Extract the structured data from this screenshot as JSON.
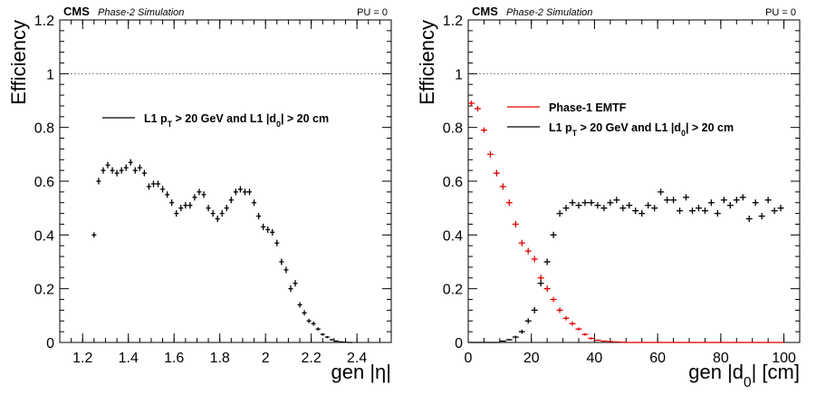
{
  "chart_data": [
    {
      "type": "scatter",
      "experiment_label": "CMS",
      "status_label": "Phase-2 Simulation",
      "condition_label": "PU = 0",
      "xlabel": "gen |η|",
      "ylabel": "Efficiency",
      "xlim": [
        1.1,
        2.55
      ],
      "ylim": [
        0,
        1.2
      ],
      "xticks": [
        1.2,
        1.4,
        1.6,
        1.8,
        2,
        2.2,
        2.4
      ],
      "xtick_labels": [
        "1.2",
        "1.4",
        "1.6",
        "1.8",
        "2",
        "2.2",
        "2.4"
      ],
      "yticks": [
        0,
        0.2,
        0.4,
        0.6,
        0.8,
        1,
        1.2
      ],
      "ytick_labels": [
        "0",
        "0.2",
        "0.4",
        "0.6",
        "0.8",
        "1",
        "1.2"
      ],
      "reference_line": 1,
      "grid": false,
      "legend_position": "upper-right",
      "series": [
        {
          "name": "L1 p_T > 20 GeV and L1 |d_0| > 20 cm",
          "color": "#000000",
          "x": [
            1.25,
            1.27,
            1.29,
            1.31,
            1.33,
            1.35,
            1.37,
            1.39,
            1.41,
            1.43,
            1.45,
            1.47,
            1.49,
            1.51,
            1.53,
            1.55,
            1.57,
            1.59,
            1.61,
            1.63,
            1.65,
            1.67,
            1.69,
            1.71,
            1.73,
            1.75,
            1.77,
            1.79,
            1.81,
            1.83,
            1.85,
            1.87,
            1.89,
            1.91,
            1.93,
            1.95,
            1.97,
            1.99,
            2.01,
            2.03,
            2.05,
            2.07,
            2.09,
            2.11,
            2.13,
            2.15,
            2.17,
            2.19,
            2.21,
            2.23,
            2.25,
            2.27,
            2.29,
            2.31,
            2.33,
            2.35,
            2.37
          ],
          "y": [
            0.4,
            0.6,
            0.64,
            0.66,
            0.64,
            0.63,
            0.64,
            0.65,
            0.67,
            0.64,
            0.65,
            0.63,
            0.58,
            0.59,
            0.59,
            0.57,
            0.55,
            0.52,
            0.48,
            0.5,
            0.51,
            0.51,
            0.54,
            0.56,
            0.55,
            0.5,
            0.48,
            0.46,
            0.48,
            0.5,
            0.53,
            0.56,
            0.57,
            0.56,
            0.56,
            0.52,
            0.47,
            0.43,
            0.42,
            0.41,
            0.37,
            0.3,
            0.27,
            0.2,
            0.22,
            0.14,
            0.11,
            0.08,
            0.07,
            0.05,
            0.03,
            0.02,
            0.01,
            0.005,
            0.002,
            0.001,
            0.0
          ],
          "err": [
            0.01,
            0.012,
            0.012,
            0.012,
            0.012,
            0.012,
            0.012,
            0.012,
            0.012,
            0.012,
            0.012,
            0.012,
            0.012,
            0.012,
            0.012,
            0.012,
            0.012,
            0.012,
            0.012,
            0.012,
            0.012,
            0.012,
            0.012,
            0.012,
            0.012,
            0.012,
            0.012,
            0.012,
            0.012,
            0.012,
            0.012,
            0.012,
            0.012,
            0.012,
            0.012,
            0.012,
            0.012,
            0.012,
            0.012,
            0.012,
            0.012,
            0.012,
            0.012,
            0.012,
            0.012,
            0.01,
            0.01,
            0.008,
            0.008,
            0.006,
            0.005,
            0.004,
            0.003,
            0.002,
            0.002,
            0.001,
            0.001
          ]
        }
      ]
    },
    {
      "type": "scatter",
      "experiment_label": "CMS",
      "status_label": "Phase-2 Simulation",
      "condition_label": "PU = 0",
      "xlabel": "gen |d_0| [cm]",
      "ylabel": "Efficiency",
      "xlim": [
        0,
        105
      ],
      "ylim": [
        0,
        1.2
      ],
      "xticks": [
        0,
        20,
        40,
        60,
        80,
        100
      ],
      "xtick_labels": [
        "0",
        "20",
        "40",
        "60",
        "80",
        "100"
      ],
      "yticks": [
        0,
        0.2,
        0.4,
        0.6,
        0.8,
        1,
        1.2
      ],
      "ytick_labels": [
        "0",
        "0.2",
        "0.4",
        "0.6",
        "0.8",
        "1",
        "1.2"
      ],
      "reference_line": 1,
      "grid": false,
      "legend_position": "upper-right",
      "series": [
        {
          "name": "Phase-1 EMTF",
          "color": "#e00000",
          "x": [
            1,
            3,
            5,
            7,
            9,
            11,
            13,
            15,
            17,
            19,
            21,
            23,
            25,
            27,
            29,
            31,
            33,
            35,
            37,
            39,
            41,
            43,
            45,
            47,
            49,
            51,
            53,
            55,
            57,
            59,
            61,
            63,
            65,
            67,
            69,
            71,
            73,
            75,
            77,
            79,
            81,
            83,
            85,
            87,
            89,
            91,
            93,
            95,
            97,
            99
          ],
          "y": [
            0.89,
            0.87,
            0.79,
            0.7,
            0.63,
            0.58,
            0.52,
            0.44,
            0.37,
            0.34,
            0.31,
            0.24,
            0.2,
            0.16,
            0.12,
            0.09,
            0.07,
            0.05,
            0.03,
            0.015,
            0.008,
            0.005,
            0.003,
            0.002,
            0.001,
            0.0,
            0.0,
            0.0,
            0.0,
            0.0,
            0.0,
            0.0,
            0.0,
            0.0,
            0.0,
            0.0,
            0.0,
            0.0,
            0.0,
            0.0,
            0.0,
            0.0,
            0.0,
            0.0,
            0.0,
            0.0,
            0.0,
            0.0,
            0.0,
            0.0
          ],
          "err": [
            0.01,
            0.01,
            0.01,
            0.012,
            0.012,
            0.012,
            0.012,
            0.012,
            0.012,
            0.012,
            0.012,
            0.012,
            0.012,
            0.01,
            0.01,
            0.008,
            0.008,
            0.006,
            0.005,
            0.004,
            0.003,
            0.002,
            0.002,
            0.001,
            0.001,
            0,
            0,
            0,
            0,
            0,
            0,
            0,
            0,
            0,
            0,
            0,
            0,
            0,
            0,
            0,
            0,
            0,
            0,
            0,
            0,
            0,
            0,
            0,
            0,
            0
          ]
        },
        {
          "name": "L1 p_T > 20 GeV and L1 |d_0| > 20 cm",
          "color": "#000000",
          "x": [
            1,
            3,
            5,
            7,
            9,
            11,
            13,
            15,
            17,
            19,
            21,
            23,
            25,
            27,
            29,
            31,
            33,
            35,
            37,
            39,
            41,
            43,
            45,
            47,
            49,
            51,
            53,
            55,
            57,
            59,
            61,
            63,
            65,
            67,
            69,
            71,
            73,
            75,
            77,
            79,
            81,
            83,
            85,
            87,
            89,
            91,
            93,
            95,
            97,
            99
          ],
          "y": [
            0.0,
            0.0,
            0.0,
            0.0,
            0.0,
            0.005,
            0.01,
            0.02,
            0.04,
            0.08,
            0.12,
            0.22,
            0.3,
            0.4,
            0.48,
            0.5,
            0.52,
            0.51,
            0.52,
            0.52,
            0.51,
            0.5,
            0.52,
            0.53,
            0.5,
            0.51,
            0.49,
            0.48,
            0.51,
            0.5,
            0.56,
            0.53,
            0.53,
            0.49,
            0.54,
            0.49,
            0.5,
            0.49,
            0.52,
            0.48,
            0.53,
            0.51,
            0.53,
            0.54,
            0.46,
            0.52,
            0.47,
            0.53,
            0.49,
            0.5
          ],
          "err": [
            0,
            0,
            0,
            0,
            0,
            0.002,
            0.003,
            0.005,
            0.008,
            0.01,
            0.012,
            0.012,
            0.012,
            0.012,
            0.012,
            0.012,
            0.012,
            0.012,
            0.012,
            0.012,
            0.012,
            0.012,
            0.012,
            0.012,
            0.012,
            0.012,
            0.012,
            0.012,
            0.012,
            0.012,
            0.012,
            0.012,
            0.012,
            0.012,
            0.012,
            0.012,
            0.012,
            0.012,
            0.012,
            0.012,
            0.012,
            0.012,
            0.012,
            0.012,
            0.012,
            0.012,
            0.012,
            0.012,
            0.012,
            0.012
          ]
        }
      ]
    }
  ]
}
